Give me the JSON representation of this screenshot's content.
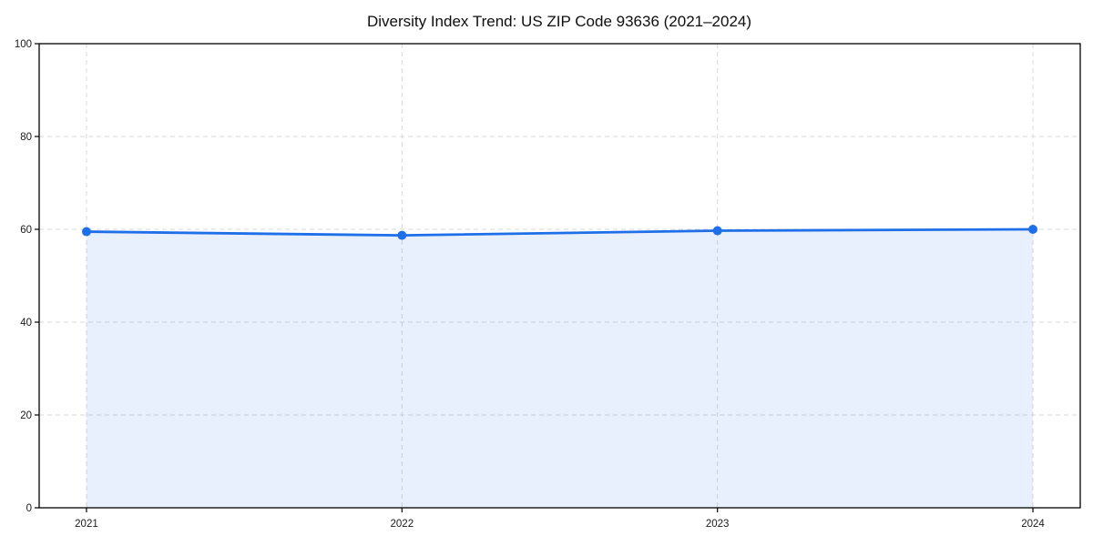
{
  "chart_data": {
    "type": "line",
    "title": "Diversity Index Trend: US ZIP Code 93636 (2021–2024)",
    "x": [
      2021,
      2022,
      2023,
      2024
    ],
    "series": [
      {
        "name": "Diversity Index",
        "values": [
          59.5,
          58.7,
          59.7,
          60.0
        ]
      }
    ],
    "xlabel": "",
    "ylabel": "",
    "xticks": [
      2021,
      2022,
      2023,
      2024
    ],
    "yticks": [
      0,
      20,
      40,
      60,
      80,
      100
    ],
    "ylim": [
      0,
      100
    ],
    "xlim": [
      2020.85,
      2024.15
    ],
    "grid": true,
    "grid_style": "dashed",
    "legend_position": "none",
    "area_fill": true,
    "marker": "circle",
    "colors": {
      "line": "#1f6fe8",
      "marker": "#1f6fe8",
      "fill": "#1f6fe8",
      "fill_opacity": 0.1,
      "gridline": "#dadada",
      "spine": "#000000",
      "background": "#ffffff",
      "title_text": "#0e0e0e",
      "tick_text": "#1a1a1a"
    }
  }
}
